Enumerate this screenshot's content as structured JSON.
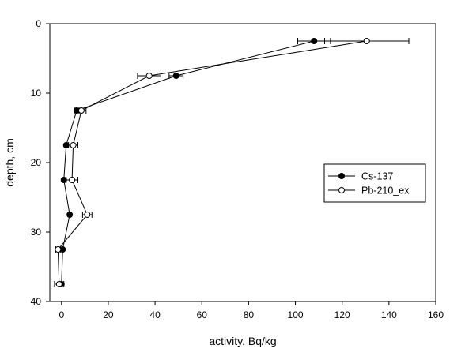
{
  "chart_data": {
    "type": "scatter",
    "title": "",
    "xlabel": "activity, Bq/kg",
    "ylabel": "depth, cm",
    "xlim": [
      -5,
      160
    ],
    "ylim": [
      0,
      40
    ],
    "y_inverted": true,
    "x_ticks": [
      "0",
      "20",
      "40",
      "60",
      "80",
      "100",
      "120",
      "140",
      "160"
    ],
    "y_ticks": [
      "0",
      "10",
      "20",
      "30",
      "40"
    ],
    "legend_position": "right",
    "series": [
      {
        "name": "Cs-137",
        "marker": "filled-circle",
        "color": "#000000",
        "points": [
          {
            "x": 108,
            "y": 2.5,
            "err": 7
          },
          {
            "x": 49,
            "y": 7.5,
            "err": 3
          },
          {
            "x": 6.5,
            "y": 12.5,
            "err": 1
          },
          {
            "x": 2,
            "y": 17.5,
            "err": 0
          },
          {
            "x": 1,
            "y": 22.5,
            "err": 0
          },
          {
            "x": 3.5,
            "y": 27.5,
            "err": 0
          },
          {
            "x": 0.5,
            "y": 32.5,
            "err": 0
          },
          {
            "x": 0,
            "y": 37.5,
            "err": 0
          }
        ]
      },
      {
        "name": "Pb-210_ex",
        "marker": "open-circle",
        "color": "#000000",
        "points": [
          {
            "x": 130.5,
            "y": 2.5,
            "err": 18
          },
          {
            "x": 37.5,
            "y": 7.5,
            "err": 5
          },
          {
            "x": 8.5,
            "y": 12.5,
            "err": 2
          },
          {
            "x": 5,
            "y": 17.5,
            "err": 2
          },
          {
            "x": 4.5,
            "y": 22.5,
            "err": 2.5
          },
          {
            "x": 11,
            "y": 27.5,
            "err": 2
          },
          {
            "x": -1.5,
            "y": 32.5,
            "err": 1
          },
          {
            "x": -1,
            "y": 37.5,
            "err": 2
          }
        ]
      }
    ]
  }
}
